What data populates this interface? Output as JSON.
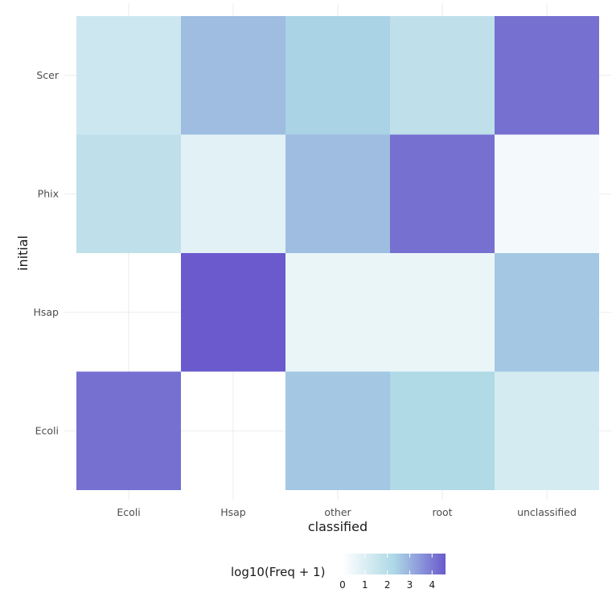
{
  "chart_data": {
    "type": "heatmap",
    "x_categories": [
      "Ecoli",
      "Hsap",
      "other",
      "root",
      "unclassified"
    ],
    "y_categories": [
      "Ecoli",
      "Hsap",
      "Phix",
      "Scer"
    ],
    "xlabel": "classified",
    "ylabel": "initial",
    "values": [
      [
        4.2,
        null,
        2.6,
        2.2,
        1.2
      ],
      [
        null,
        4.6,
        0.6,
        0.6,
        2.6
      ],
      [
        1.8,
        0.8,
        2.8,
        4.2,
        0.3
      ],
      [
        1.4,
        2.8,
        2.4,
        1.8,
        4.2
      ]
    ],
    "legend": {
      "title": "log10(Freq + 1)",
      "ticks": [
        0,
        1,
        2,
        3,
        4
      ],
      "range": [
        0,
        4.6
      ],
      "placement": "bottom"
    },
    "colors": {
      "low": "#ffffff",
      "mid": "#add8e6",
      "high": "#6a5acd",
      "grid": "#ebebeb",
      "na": "#ffffff"
    },
    "grid": true
  }
}
